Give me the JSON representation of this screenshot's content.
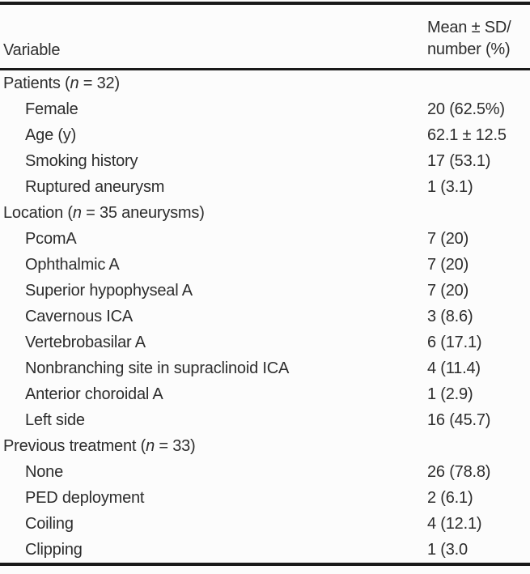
{
  "table": {
    "header": {
      "variable": "Variable",
      "value_line1": "Mean ± SD/",
      "value_line2": "number (%)"
    },
    "rows": [
      {
        "indent": 0,
        "label": [
          "Patients (",
          {
            "i": "n"
          },
          " = 32)"
        ],
        "value": ""
      },
      {
        "indent": 1,
        "label": [
          "Female"
        ],
        "value": "20 (62.5%)"
      },
      {
        "indent": 1,
        "label": [
          "Age (y)"
        ],
        "value": "62.1 ± 12.5"
      },
      {
        "indent": 1,
        "label": [
          "Smoking history"
        ],
        "value": "17 (53.1)"
      },
      {
        "indent": 1,
        "label": [
          "Ruptured aneurysm"
        ],
        "value": "1 (3.1)"
      },
      {
        "indent": 0,
        "label": [
          "Location (",
          {
            "i": "n"
          },
          " = 35 aneurysms)"
        ],
        "value": ""
      },
      {
        "indent": 1,
        "label": [
          "PcomA"
        ],
        "value": "7 (20)"
      },
      {
        "indent": 1,
        "label": [
          "Ophthalmic A"
        ],
        "value": "7 (20)"
      },
      {
        "indent": 1,
        "label": [
          "Superior hypophyseal A"
        ],
        "value": "7 (20)"
      },
      {
        "indent": 1,
        "label": [
          "Cavernous ICA"
        ],
        "value": "3 (8.6)"
      },
      {
        "indent": 1,
        "label": [
          "Vertebrobasilar A"
        ],
        "value": "6 (17.1)"
      },
      {
        "indent": 1,
        "label": [
          "Nonbranching site in supraclinoid ICA"
        ],
        "value": "4 (11.4)"
      },
      {
        "indent": 1,
        "label": [
          "Anterior choroidal A"
        ],
        "value": "1 (2.9)"
      },
      {
        "indent": 1,
        "label": [
          "Left side"
        ],
        "value": "16 (45.7)"
      },
      {
        "indent": 0,
        "label": [
          "Previous treatment (",
          {
            "i": "n"
          },
          " = 33)"
        ],
        "value": ""
      },
      {
        "indent": 1,
        "label": [
          "None"
        ],
        "value": "26 (78.8)"
      },
      {
        "indent": 1,
        "label": [
          "PED deployment"
        ],
        "value": "2 (6.1)"
      },
      {
        "indent": 1,
        "label": [
          "Coiling"
        ],
        "value": "4 (12.1)"
      },
      {
        "indent": 1,
        "label": [
          "Clipping"
        ],
        "value": "1 (3.0"
      }
    ],
    "colors": {
      "rule": "#1a1a1a",
      "text": "#2d2d2d",
      "background": "#fcfcfc"
    }
  }
}
